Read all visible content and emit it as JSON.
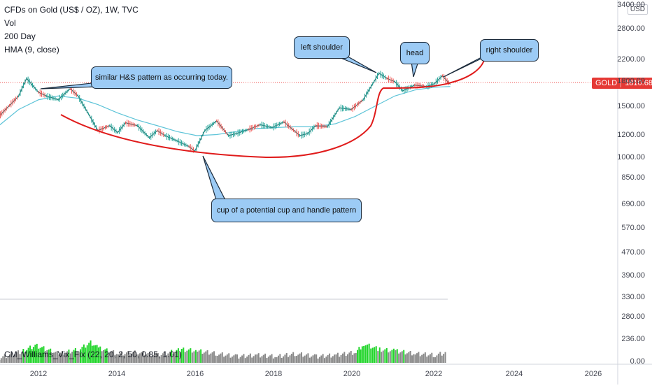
{
  "legend": {
    "title": "CFDs on Gold (US$ / OZ), 1W, TVC",
    "vol": "Vol",
    "ma": "200 Day",
    "hma": "HMA (9, close)"
  },
  "indicator_label": "CM_Williams_Vix_Fix (22, 20, 2, 50, 0.85, 1.01)",
  "currency": "USD",
  "price_tag": {
    "symbol": "GOLD",
    "price": "1810.68"
  },
  "annotations": {
    "similar": "similar H&S pattern as occurring today.",
    "left_shoulder": "left shoulder",
    "head": "head",
    "right_shoulder": "right shoulder",
    "cup": "cup of a potential cup and handle pattern"
  },
  "chart_data": {
    "type": "line",
    "y_scale": "log",
    "x_ticks": [
      "2012",
      "2014",
      "2016",
      "2018",
      "2020",
      "2022",
      "2024",
      "2026"
    ],
    "y_ticks": [
      "3400.00",
      "2800.00",
      "2200.00",
      "1800.00",
      "1500.00",
      "1200.00",
      "1000.00",
      "850.00",
      "690.00",
      "570.00",
      "470.00",
      "390.00",
      "330.00",
      "280.00",
      "236.00",
      "0.00"
    ],
    "series": [
      {
        "x": [
          2011.0,
          2011.5,
          2011.7,
          2012.0,
          2012.2,
          2012.5,
          2012.8,
          2013.0,
          2013.3,
          2013.5,
          2013.8,
          2014.0,
          2014.2,
          2014.5,
          2014.8,
          2015.0,
          2015.2,
          2015.5,
          2015.8,
          2015.95,
          2016.2,
          2016.5,
          2016.8,
          2017.0,
          2017.3,
          2017.6,
          2017.9,
          2018.2,
          2018.6,
          2018.8,
          2019.0,
          2019.3,
          2019.6,
          2019.9,
          2020.2,
          2020.6,
          2020.8,
          2021.0,
          2021.2,
          2021.5,
          2021.8,
          2022.0,
          2022.2,
          2022.4
        ],
        "values": [
          1400,
          1650,
          1900,
          1700,
          1650,
          1600,
          1750,
          1650,
          1400,
          1250,
          1300,
          1230,
          1330,
          1300,
          1180,
          1250,
          1200,
          1150,
          1100,
          1060,
          1250,
          1350,
          1200,
          1220,
          1260,
          1310,
          1280,
          1340,
          1200,
          1220,
          1300,
          1290,
          1500,
          1480,
          1600,
          1980,
          1900,
          1850,
          1720,
          1800,
          1780,
          1820,
          1940,
          1810
        ]
      }
    ],
    "ma_200": {
      "x": [
        2011.0,
        2011.5,
        2012.0,
        2012.5,
        2013.0,
        2013.5,
        2014.0,
        2014.5,
        2015.0,
        2015.5,
        2016.0,
        2016.5,
        2017.0,
        2017.5,
        2018.0,
        2018.5,
        2019.0,
        2019.5,
        2020.0,
        2020.5,
        2021.0,
        2021.5,
        2022.0,
        2022.4
      ],
      "values": [
        1300,
        1480,
        1600,
        1650,
        1620,
        1540,
        1440,
        1360,
        1300,
        1240,
        1200,
        1210,
        1240,
        1270,
        1280,
        1290,
        1290,
        1320,
        1400,
        1520,
        1650,
        1730,
        1770,
        1780
      ]
    },
    "vix_fix": {
      "x": [
        2011.0,
        2011.6,
        2011.9,
        2012.5,
        2013.0,
        2013.3,
        2013.5,
        2014.0,
        2014.5,
        2015.0,
        2015.6,
        2016.0,
        2016.5,
        2017.0,
        2017.5,
        2018.0,
        2018.5,
        2019.0,
        2019.5,
        2020.0,
        2020.2,
        2020.6,
        2021.0,
        2021.5,
        2022.0,
        2022.3
      ],
      "values": [
        3,
        8,
        12,
        6,
        9,
        14,
        10,
        6,
        7,
        5,
        9,
        8,
        6,
        4,
        5,
        4,
        6,
        4,
        5,
        7,
        13,
        9,
        8,
        6,
        5,
        7
      ]
    }
  }
}
